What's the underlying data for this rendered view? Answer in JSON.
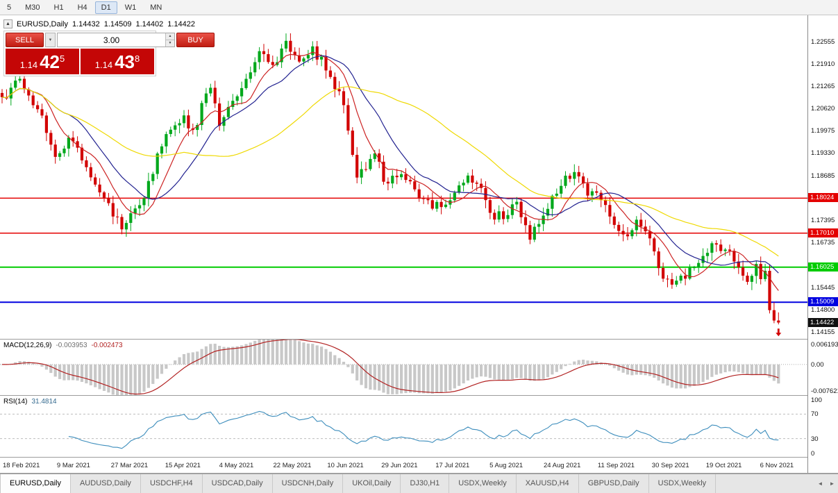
{
  "toolbar": {
    "timeframes": [
      "5",
      "M30",
      "H1",
      "H4",
      "D1",
      "W1",
      "MN"
    ],
    "active": "D1"
  },
  "chart_header": {
    "collapse_icon": "▲",
    "symbol": "EURUSD,Daily",
    "open": "1.14432",
    "high": "1.14509",
    "low": "1.14402",
    "close": "1.14422"
  },
  "trade_panel": {
    "sell_label": "SELL",
    "buy_label": "BUY",
    "volume": "3.00",
    "sell_price_prefix": "1.14",
    "sell_price_big": "42",
    "sell_price_sup": "5",
    "buy_price_prefix": "1.14",
    "buy_price_big": "43",
    "buy_price_sup": "8"
  },
  "chart_data": {
    "type": "candlestick",
    "symbol": "EURUSD",
    "timeframe": "Daily",
    "candle_count": 176,
    "price_domain": [
      1.1395,
      1.2332
    ],
    "colors": {
      "up": "#00A81C",
      "down": "#D20000",
      "background": "#FFFFFF"
    },
    "swing_points": [
      [
        0,
        1.2095
      ],
      [
        4,
        1.2148
      ],
      [
        8,
        1.206
      ],
      [
        12,
        1.1922
      ],
      [
        15,
        1.1978
      ],
      [
        19,
        1.1892
      ],
      [
        24,
        1.1788
      ],
      [
        27,
        1.1712
      ],
      [
        31,
        1.1782
      ],
      [
        37,
        1.1988
      ],
      [
        41,
        1.2042
      ],
      [
        43,
        1.2
      ],
      [
        47,
        1.2122
      ],
      [
        49,
        1.2012
      ],
      [
        55,
        1.2148
      ],
      [
        58,
        1.2228
      ],
      [
        61,
        1.2188
      ],
      [
        64,
        1.2258
      ],
      [
        67,
        1.2198
      ],
      [
        70,
        1.2242
      ],
      [
        73,
        1.2172
      ],
      [
        76,
        1.2112
      ],
      [
        78,
        1.1998
      ],
      [
        80,
        1.1862
      ],
      [
        84,
        1.1932
      ],
      [
        86,
        1.185
      ],
      [
        90,
        1.1872
      ],
      [
        93,
        1.1828
      ],
      [
        95,
        1.18
      ],
      [
        97,
        1.1772
      ],
      [
        102,
        1.1818
      ],
      [
        105,
        1.1868
      ],
      [
        108,
        1.1832
      ],
      [
        110,
        1.176
      ],
      [
        113,
        1.1742
      ],
      [
        116,
        1.1792
      ],
      [
        119,
        1.1682
      ],
      [
        122,
        1.1752
      ],
      [
        126,
        1.1838
      ],
      [
        129,
        1.1878
      ],
      [
        132,
        1.181
      ],
      [
        134,
        1.1818
      ],
      [
        138,
        1.1725
      ],
      [
        141,
        1.1692
      ],
      [
        143,
        1.174
      ],
      [
        146,
        1.1686
      ],
      [
        148,
        1.16
      ],
      [
        151,
        1.1552
      ],
      [
        153,
        1.1578
      ],
      [
        156,
        1.1602
      ],
      [
        158,
        1.1635
      ],
      [
        161,
        1.1668
      ],
      [
        164,
        1.165
      ],
      [
        166,
        1.1602
      ],
      [
        168,
        1.156
      ],
      [
        170,
        1.1612
      ],
      [
        171,
        1.1568
      ],
      [
        172,
        1.1592
      ],
      [
        173,
        1.1478
      ],
      [
        174,
        1.1448
      ],
      [
        175,
        1.14422
      ]
    ],
    "moving_averages": [
      {
        "period": 8,
        "color": "#CC2222"
      },
      {
        "period": 16,
        "color": "#222290"
      },
      {
        "period": 42,
        "color": "#EFD902"
      }
    ],
    "horizontal_lines": [
      {
        "value": 1.18024,
        "label": "1.18024",
        "color": "#E40000",
        "width": 1.5
      },
      {
        "value": 1.1701,
        "label": "1.17010",
        "color": "#E40000",
        "width": 1.5
      },
      {
        "value": 1.16025,
        "label": "1.16025",
        "color": "#00CC00",
        "width": 2
      },
      {
        "value": 1.15009,
        "label": "1.15009",
        "color": "#0000E0",
        "width": 2
      }
    ],
    "last_price": {
      "value": 1.14422,
      "label": "1.14422",
      "bg": "#111111"
    },
    "sell_marker": {
      "shape": "down-arrow",
      "color": "#D20000"
    },
    "y_ticks": [
      "1.22555",
      "1.21910",
      "1.21265",
      "1.20620",
      "1.19975",
      "1.19330",
      "1.18685",
      "1.17395",
      "1.16735",
      "1.15445",
      "1.14800",
      "1.14155"
    ],
    "x_dates": [
      "18 Feb 2021",
      "9 Mar 2021",
      "27 Mar 2021",
      "15 Apr 2021",
      "4 May 2021",
      "22 May 2021",
      "10 Jun 2021",
      "29 Jun 2021",
      "17 Jul 2021",
      "5 Aug 2021",
      "24 Aug 2021",
      "11 Sep 2021",
      "30 Sep 2021",
      "19 Oct 2021",
      "6 Nov 2021"
    ]
  },
  "macd": {
    "title": "MACD(12,26,9)",
    "value_main": "-0.003953",
    "value_signal": "-0.002473",
    "params": {
      "fast": 12,
      "slow": 26,
      "signal": 9
    },
    "domain": {
      "min": -0.007621,
      "max": 0.006193
    },
    "axis_labels": [
      "0.006193",
      "0.00",
      "-0.007621"
    ],
    "histogram_color": "#C8C8C8",
    "signal_color": "#B22222"
  },
  "rsi": {
    "title": "RSI(14)",
    "value": "31.4814",
    "period": 14,
    "levels": [
      70,
      30
    ],
    "axis_labels": [
      "100",
      "70",
      "30",
      "0"
    ],
    "line_color": "#3C8DBC"
  },
  "tabs": {
    "items": [
      "EURUSD,Daily",
      "AUDUSD,Daily",
      "USDCHF,H4",
      "USDCAD,Daily",
      "USDCNH,Daily",
      "UKOil,Daily",
      "DJ30,H1",
      "USDX,Weekly",
      "XAUUSD,H4",
      "GBPUSD,Daily",
      "USDX,Weekly"
    ],
    "active": "EURUSD,Daily",
    "scroll_left": "◄",
    "scroll_right": "►"
  }
}
